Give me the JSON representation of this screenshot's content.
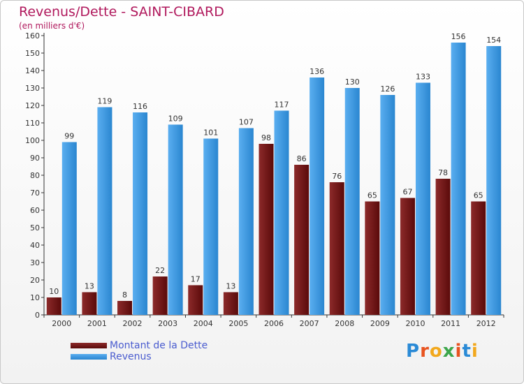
{
  "title": "Revenus/Dette - SAINT-CIBARD",
  "subtitle": "(en milliers d'€)",
  "logo": {
    "text": "Proxiti",
    "colors": [
      "#2a8ad6",
      "#e8531f",
      "#f2a81d",
      "#3ca64b",
      "#e8531f",
      "#2a8ad6",
      "#f2a81d"
    ]
  },
  "colors": {
    "dette": "#7a1a1a",
    "revenus": "#3c9be6",
    "title": "#b0185c",
    "legend_text": "#4a5ccf"
  },
  "chart_data": {
    "type": "bar",
    "categories": [
      "2000",
      "2001",
      "2002",
      "2003",
      "2004",
      "2005",
      "2006",
      "2007",
      "2008",
      "2009",
      "2010",
      "2011",
      "2012"
    ],
    "series": [
      {
        "name": "Montant de la Dette",
        "values": [
          10,
          13,
          8,
          22,
          17,
          13,
          98,
          86,
          76,
          65,
          67,
          78,
          65
        ]
      },
      {
        "name": "Revenus",
        "values": [
          99,
          119,
          116,
          109,
          101,
          107,
          117,
          136,
          130,
          126,
          133,
          156,
          154
        ]
      }
    ],
    "title": "Revenus/Dette - SAINT-CIBARD",
    "ylabel": "(en milliers d'€)",
    "ylim": [
      0,
      160
    ],
    "yticks": [
      0,
      10,
      20,
      30,
      40,
      50,
      60,
      70,
      80,
      90,
      100,
      110,
      120,
      130,
      140,
      150,
      160
    ],
    "grid": false,
    "legend": "bottom-left"
  }
}
